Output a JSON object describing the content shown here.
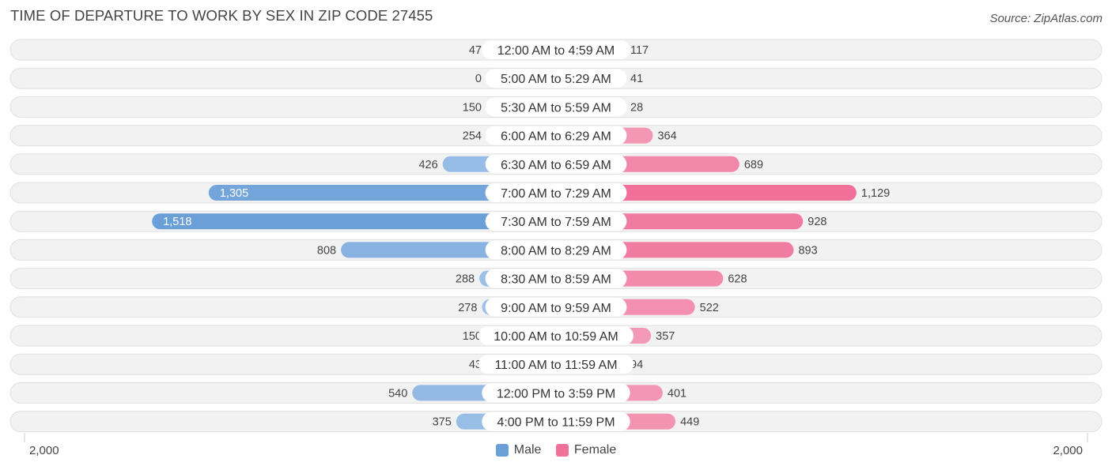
{
  "title": "TIME OF DEPARTURE TO WORK BY SEX IN ZIP CODE 27455",
  "source": "Source: ZipAtlas.com",
  "axis": {
    "left_label": "2,000",
    "right_label": "2,000"
  },
  "legend": {
    "male": "Male",
    "female": "Female"
  },
  "colors": {
    "male_light": "#a9c8eb",
    "male_dark": "#6a9fd8",
    "female_light": "#f5aac3",
    "female_dark": "#f07099",
    "row_bg": "#f2f2f2",
    "row_border": "#e0e0e0"
  },
  "chart_data": {
    "type": "bar",
    "orientation": "horizontal-diverging",
    "axis_max": 2000,
    "categories": [
      "12:00 AM to 4:59 AM",
      "5:00 AM to 5:29 AM",
      "5:30 AM to 5:59 AM",
      "6:00 AM to 6:29 AM",
      "6:30 AM to 6:59 AM",
      "7:00 AM to 7:29 AM",
      "7:30 AM to 7:59 AM",
      "8:00 AM to 8:29 AM",
      "8:30 AM to 8:59 AM",
      "9:00 AM to 9:59 AM",
      "10:00 AM to 10:59 AM",
      "11:00 AM to 11:59 AM",
      "12:00 PM to 3:59 PM",
      "4:00 PM to 11:59 PM"
    ],
    "series": [
      {
        "name": "Male",
        "values": [
          47,
          0,
          150,
          254,
          426,
          1305,
          1518,
          808,
          288,
          278,
          150,
          43,
          540,
          375
        ],
        "labels": [
          "47",
          "0",
          "150",
          "254",
          "426",
          "1,305",
          "1,518",
          "808",
          "288",
          "278",
          "150",
          "43",
          "540",
          "375"
        ]
      },
      {
        "name": "Female",
        "values": [
          117,
          41,
          28,
          364,
          689,
          1129,
          928,
          893,
          628,
          522,
          357,
          94,
          401,
          449
        ],
        "labels": [
          "117",
          "41",
          "28",
          "364",
          "689",
          "1,129",
          "928",
          "893",
          "628",
          "522",
          "357",
          "94",
          "401",
          "449"
        ]
      }
    ]
  }
}
